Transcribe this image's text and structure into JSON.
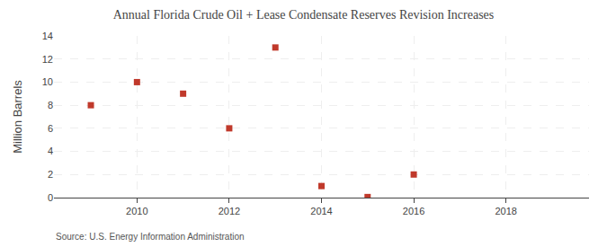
{
  "chart_data": {
    "type": "scatter",
    "title": "Annual Florida Crude Oil + Lease Condensate Reserves Revision Increases",
    "ylabel": "Million Barrels",
    "source": "Source: U.S. Energy Information Administration",
    "x": [
      2009,
      2010,
      2011,
      2012,
      2013,
      2014,
      2015,
      2016
    ],
    "values": [
      8.0,
      10.0,
      9.0,
      6.0,
      13.0,
      1.0,
      0.05,
      2.0
    ],
    "color": "#c0392b",
    "marker": "square",
    "xlim": [
      2008.2,
      2019.8
    ],
    "xticks": [
      2010,
      2012,
      2014,
      2016,
      2018
    ],
    "ylim": [
      0,
      14
    ],
    "yticks": [
      0,
      2,
      4,
      6,
      8,
      10,
      12,
      14
    ],
    "grid": true
  }
}
